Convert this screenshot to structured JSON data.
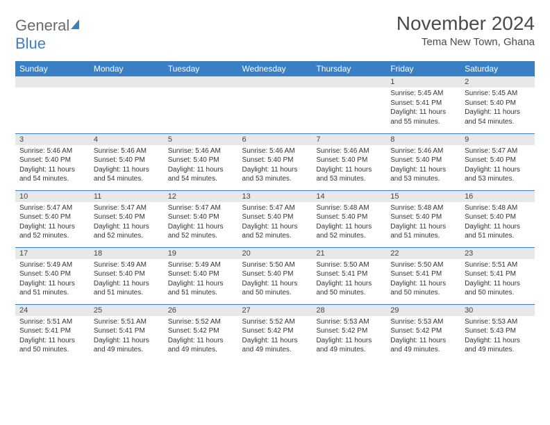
{
  "logo": {
    "word1": "General",
    "word2": "Blue"
  },
  "title": "November 2024",
  "location": "Tema New Town, Ghana",
  "colors": {
    "header_bg": "#3a7fc4",
    "header_text": "#ffffff",
    "daynum_bg": "#e8e8e8",
    "border": "#3a7fc4",
    "logo_gray": "#6b6b6b",
    "logo_blue": "#3a7fc4"
  },
  "weekdays": [
    "Sunday",
    "Monday",
    "Tuesday",
    "Wednesday",
    "Thursday",
    "Friday",
    "Saturday"
  ],
  "weeks": [
    [
      {
        "day": "",
        "sunrise": "",
        "sunset": "",
        "daylight": ""
      },
      {
        "day": "",
        "sunrise": "",
        "sunset": "",
        "daylight": ""
      },
      {
        "day": "",
        "sunrise": "",
        "sunset": "",
        "daylight": ""
      },
      {
        "day": "",
        "sunrise": "",
        "sunset": "",
        "daylight": ""
      },
      {
        "day": "",
        "sunrise": "",
        "sunset": "",
        "daylight": ""
      },
      {
        "day": "1",
        "sunrise": "Sunrise: 5:45 AM",
        "sunset": "Sunset: 5:41 PM",
        "daylight": "Daylight: 11 hours and 55 minutes."
      },
      {
        "day": "2",
        "sunrise": "Sunrise: 5:45 AM",
        "sunset": "Sunset: 5:40 PM",
        "daylight": "Daylight: 11 hours and 54 minutes."
      }
    ],
    [
      {
        "day": "3",
        "sunrise": "Sunrise: 5:46 AM",
        "sunset": "Sunset: 5:40 PM",
        "daylight": "Daylight: 11 hours and 54 minutes."
      },
      {
        "day": "4",
        "sunrise": "Sunrise: 5:46 AM",
        "sunset": "Sunset: 5:40 PM",
        "daylight": "Daylight: 11 hours and 54 minutes."
      },
      {
        "day": "5",
        "sunrise": "Sunrise: 5:46 AM",
        "sunset": "Sunset: 5:40 PM",
        "daylight": "Daylight: 11 hours and 54 minutes."
      },
      {
        "day": "6",
        "sunrise": "Sunrise: 5:46 AM",
        "sunset": "Sunset: 5:40 PM",
        "daylight": "Daylight: 11 hours and 53 minutes."
      },
      {
        "day": "7",
        "sunrise": "Sunrise: 5:46 AM",
        "sunset": "Sunset: 5:40 PM",
        "daylight": "Daylight: 11 hours and 53 minutes."
      },
      {
        "day": "8",
        "sunrise": "Sunrise: 5:46 AM",
        "sunset": "Sunset: 5:40 PM",
        "daylight": "Daylight: 11 hours and 53 minutes."
      },
      {
        "day": "9",
        "sunrise": "Sunrise: 5:47 AM",
        "sunset": "Sunset: 5:40 PM",
        "daylight": "Daylight: 11 hours and 53 minutes."
      }
    ],
    [
      {
        "day": "10",
        "sunrise": "Sunrise: 5:47 AM",
        "sunset": "Sunset: 5:40 PM",
        "daylight": "Daylight: 11 hours and 52 minutes."
      },
      {
        "day": "11",
        "sunrise": "Sunrise: 5:47 AM",
        "sunset": "Sunset: 5:40 PM",
        "daylight": "Daylight: 11 hours and 52 minutes."
      },
      {
        "day": "12",
        "sunrise": "Sunrise: 5:47 AM",
        "sunset": "Sunset: 5:40 PM",
        "daylight": "Daylight: 11 hours and 52 minutes."
      },
      {
        "day": "13",
        "sunrise": "Sunrise: 5:47 AM",
        "sunset": "Sunset: 5:40 PM",
        "daylight": "Daylight: 11 hours and 52 minutes."
      },
      {
        "day": "14",
        "sunrise": "Sunrise: 5:48 AM",
        "sunset": "Sunset: 5:40 PM",
        "daylight": "Daylight: 11 hours and 52 minutes."
      },
      {
        "day": "15",
        "sunrise": "Sunrise: 5:48 AM",
        "sunset": "Sunset: 5:40 PM",
        "daylight": "Daylight: 11 hours and 51 minutes."
      },
      {
        "day": "16",
        "sunrise": "Sunrise: 5:48 AM",
        "sunset": "Sunset: 5:40 PM",
        "daylight": "Daylight: 11 hours and 51 minutes."
      }
    ],
    [
      {
        "day": "17",
        "sunrise": "Sunrise: 5:49 AM",
        "sunset": "Sunset: 5:40 PM",
        "daylight": "Daylight: 11 hours and 51 minutes."
      },
      {
        "day": "18",
        "sunrise": "Sunrise: 5:49 AM",
        "sunset": "Sunset: 5:40 PM",
        "daylight": "Daylight: 11 hours and 51 minutes."
      },
      {
        "day": "19",
        "sunrise": "Sunrise: 5:49 AM",
        "sunset": "Sunset: 5:40 PM",
        "daylight": "Daylight: 11 hours and 51 minutes."
      },
      {
        "day": "20",
        "sunrise": "Sunrise: 5:50 AM",
        "sunset": "Sunset: 5:40 PM",
        "daylight": "Daylight: 11 hours and 50 minutes."
      },
      {
        "day": "21",
        "sunrise": "Sunrise: 5:50 AM",
        "sunset": "Sunset: 5:41 PM",
        "daylight": "Daylight: 11 hours and 50 minutes."
      },
      {
        "day": "22",
        "sunrise": "Sunrise: 5:50 AM",
        "sunset": "Sunset: 5:41 PM",
        "daylight": "Daylight: 11 hours and 50 minutes."
      },
      {
        "day": "23",
        "sunrise": "Sunrise: 5:51 AM",
        "sunset": "Sunset: 5:41 PM",
        "daylight": "Daylight: 11 hours and 50 minutes."
      }
    ],
    [
      {
        "day": "24",
        "sunrise": "Sunrise: 5:51 AM",
        "sunset": "Sunset: 5:41 PM",
        "daylight": "Daylight: 11 hours and 50 minutes."
      },
      {
        "day": "25",
        "sunrise": "Sunrise: 5:51 AM",
        "sunset": "Sunset: 5:41 PM",
        "daylight": "Daylight: 11 hours and 49 minutes."
      },
      {
        "day": "26",
        "sunrise": "Sunrise: 5:52 AM",
        "sunset": "Sunset: 5:42 PM",
        "daylight": "Daylight: 11 hours and 49 minutes."
      },
      {
        "day": "27",
        "sunrise": "Sunrise: 5:52 AM",
        "sunset": "Sunset: 5:42 PM",
        "daylight": "Daylight: 11 hours and 49 minutes."
      },
      {
        "day": "28",
        "sunrise": "Sunrise: 5:53 AM",
        "sunset": "Sunset: 5:42 PM",
        "daylight": "Daylight: 11 hours and 49 minutes."
      },
      {
        "day": "29",
        "sunrise": "Sunrise: 5:53 AM",
        "sunset": "Sunset: 5:42 PM",
        "daylight": "Daylight: 11 hours and 49 minutes."
      },
      {
        "day": "30",
        "sunrise": "Sunrise: 5:53 AM",
        "sunset": "Sunset: 5:43 PM",
        "daylight": "Daylight: 11 hours and 49 minutes."
      }
    ]
  ]
}
